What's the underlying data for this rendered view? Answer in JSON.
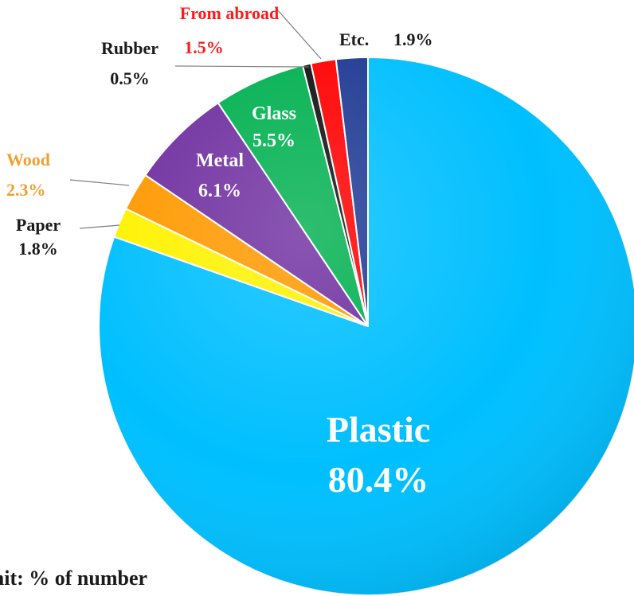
{
  "chart_data": {
    "type": "pie",
    "slices": [
      {
        "label": "Plastic",
        "value": 80.4,
        "pct_text": "80.4%",
        "color": "#00BFFF",
        "label_color": "#FFFFFF"
      },
      {
        "label": "Paper",
        "value": 1.8,
        "pct_text": "1.8%",
        "color": "#FFF200",
        "label_color": "#1A1A1A"
      },
      {
        "label": "Wood",
        "value": 2.3,
        "pct_text": "2.3%",
        "color": "#FF9900",
        "label_color": "#F0A030"
      },
      {
        "label": "Metal",
        "value": 6.1,
        "pct_text": "6.1%",
        "color": "#7030A0",
        "label_color": "#FFFFFF"
      },
      {
        "label": "Glass",
        "value": 5.5,
        "pct_text": "5.5%",
        "color": "#00B050",
        "label_color": "#FFFFFF"
      },
      {
        "label": "Rubber",
        "value": 0.5,
        "pct_text": "0.5%",
        "color": "#111111",
        "label_color": "#1A1A1A"
      },
      {
        "label": "From abroad",
        "value": 1.5,
        "pct_text": "1.5%",
        "color": "#FF0000",
        "label_color": "#FF1A1A"
      },
      {
        "label": "Etc.",
        "value": 1.9,
        "pct_text": "1.9%",
        "color": "#1F3A93",
        "label_color": "#1A1A1A"
      }
    ],
    "note": "Unit: % of number"
  }
}
